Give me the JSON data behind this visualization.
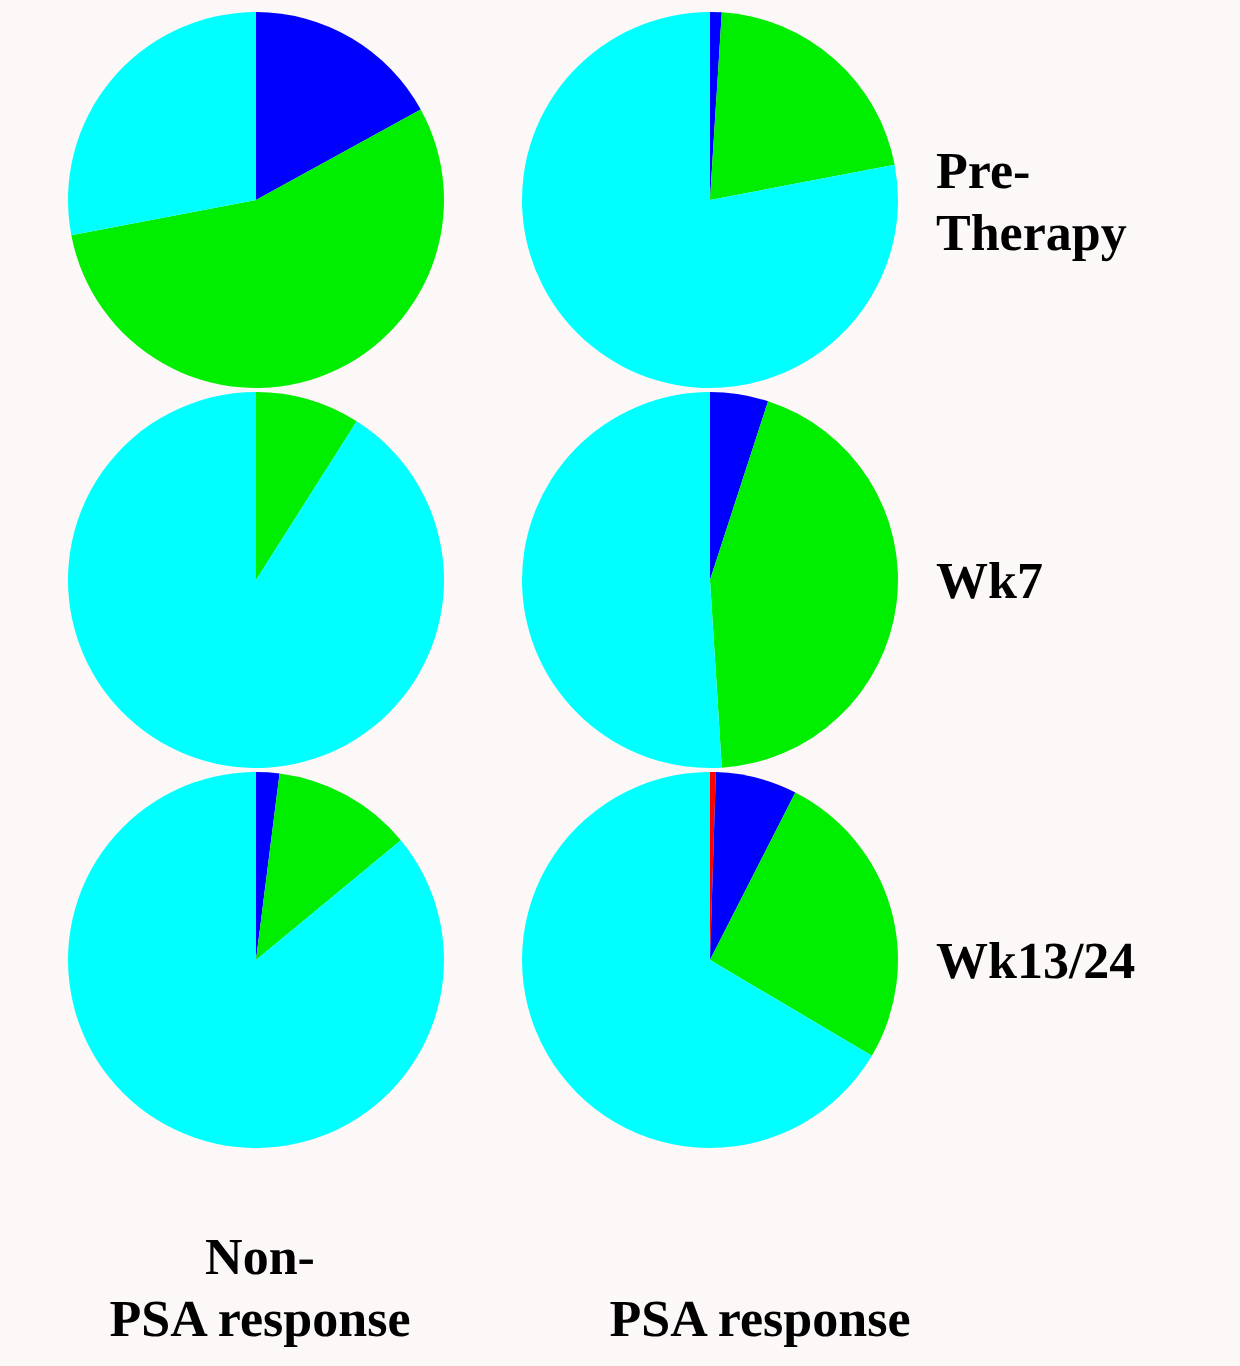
{
  "chart_data": [
    {
      "type": "pie",
      "categories": [
        null,
        null,
        null
      ],
      "values": [
        17,
        55,
        28
      ],
      "colors": [
        "#0000ff",
        "#00ee00",
        "#00ffff"
      ]
    },
    {
      "type": "pie",
      "y2label": "Pre-Therapy",
      "categories": [
        null,
        null,
        null
      ],
      "values": [
        1,
        21,
        78
      ],
      "colors": [
        "#0000ff",
        "#00ee00",
        "#00ffff"
      ]
    },
    {
      "type": "pie",
      "categories": [
        null,
        null
      ],
      "values": [
        9,
        91
      ],
      "colors": [
        "#00ee00",
        "#00ffff"
      ]
    },
    {
      "type": "pie",
      "y2label": "Wk7",
      "categories": [
        null,
        null,
        null
      ],
      "values": [
        5,
        44,
        51
      ],
      "colors": [
        "#0000ff",
        "#00ee00",
        "#00ffff"
      ]
    },
    {
      "type": "pie",
      "xlabel": "Non-PSA response",
      "categories": [
        null,
        null,
        null
      ],
      "values": [
        2,
        12,
        86
      ],
      "colors": [
        "#0000ff",
        "#00ee00",
        "#00ffff"
      ]
    },
    {
      "type": "pie",
      "xlabel": "PSA response",
      "y2label": "Wk13/24",
      "categories": [
        null,
        null,
        null,
        null
      ],
      "values": [
        0.5,
        7,
        26,
        66.5
      ],
      "colors": [
        "#ff0000",
        "#0000ff",
        "#00ee00",
        "#00ffff"
      ]
    }
  ]
}
